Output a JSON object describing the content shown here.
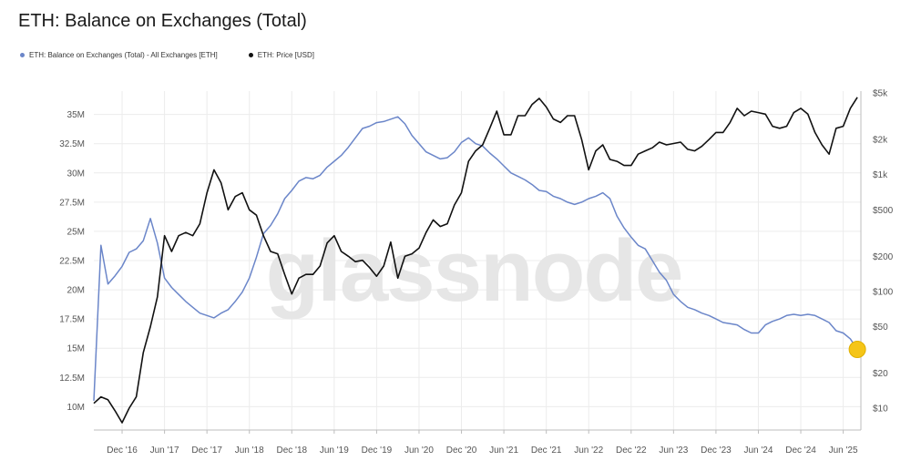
{
  "title": "ETH: Balance on Exchanges (Total)",
  "watermark": "glassnode",
  "legend": [
    {
      "label": "ETH: Balance on Exchanges (Total) - All Exchanges [ETH]",
      "color": "#6b86c9"
    },
    {
      "label": "ETH: Price [USD]",
      "color": "#111111"
    }
  ],
  "chart_data": {
    "type": "line",
    "grid": true,
    "legend_position": "top-left",
    "x_ticks": [
      "Dec '16",
      "Jun '17",
      "Dec '17",
      "Jun '18",
      "Dec '18",
      "Jun '19",
      "Dec '19",
      "Jun '20",
      "Dec '20",
      "Jun '21",
      "Dec '21",
      "Jun '22",
      "Dec '22",
      "Jun '23",
      "Dec '23",
      "Jun '24",
      "Dec '24",
      "Jun '25"
    ],
    "x_range": [
      "2016-08",
      "2025-08"
    ],
    "y_left": {
      "ticks": [
        "10M",
        "12.5M",
        "15M",
        "17.5M",
        "20M",
        "22.5M",
        "25M",
        "27.5M",
        "30M",
        "32.5M",
        "35M"
      ],
      "values": [
        10,
        12.5,
        15,
        17.5,
        20,
        22.5,
        25,
        27.5,
        30,
        32.5,
        35
      ],
      "range": [
        8,
        37
      ],
      "unit": "M ETH"
    },
    "y_right": {
      "scale": "log",
      "ticks": [
        "$10",
        "$20",
        "$50",
        "$100",
        "$200",
        "$500",
        "$1k",
        "$2k",
        "$5k"
      ],
      "values": [
        10,
        20,
        50,
        100,
        200,
        500,
        1000,
        2000,
        5000
      ],
      "range": [
        6.5,
        5200
      ]
    },
    "series": [
      {
        "name": "ETH: Balance on Exchanges (Total) - All Exchanges [ETH]",
        "axis": "left",
        "color": "#6b86c9",
        "x": [
          "2016-08",
          "2016-09",
          "2016-10",
          "2016-11",
          "2016-12",
          "2017-01",
          "2017-02",
          "2017-03",
          "2017-04",
          "2017-05",
          "2017-06",
          "2017-07",
          "2017-08",
          "2017-09",
          "2017-10",
          "2017-11",
          "2017-12",
          "2018-01",
          "2018-02",
          "2018-03",
          "2018-04",
          "2018-05",
          "2018-06",
          "2018-07",
          "2018-08",
          "2018-09",
          "2018-10",
          "2018-11",
          "2018-12",
          "2019-01",
          "2019-02",
          "2019-03",
          "2019-04",
          "2019-05",
          "2019-06",
          "2019-07",
          "2019-08",
          "2019-09",
          "2019-10",
          "2019-11",
          "2019-12",
          "2020-01",
          "2020-02",
          "2020-03",
          "2020-04",
          "2020-05",
          "2020-06",
          "2020-07",
          "2020-08",
          "2020-09",
          "2020-10",
          "2020-11",
          "2020-12",
          "2021-01",
          "2021-02",
          "2021-03",
          "2021-04",
          "2021-05",
          "2021-06",
          "2021-07",
          "2021-08",
          "2021-09",
          "2021-10",
          "2021-11",
          "2021-12",
          "2022-01",
          "2022-02",
          "2022-03",
          "2022-04",
          "2022-05",
          "2022-06",
          "2022-07",
          "2022-08",
          "2022-09",
          "2022-10",
          "2022-11",
          "2022-12",
          "2023-01",
          "2023-02",
          "2023-03",
          "2023-04",
          "2023-05",
          "2023-06",
          "2023-07",
          "2023-08",
          "2023-09",
          "2023-10",
          "2023-11",
          "2023-12",
          "2024-01",
          "2024-02",
          "2024-03",
          "2024-04",
          "2024-05",
          "2024-06",
          "2024-07",
          "2024-08",
          "2024-09",
          "2024-10",
          "2024-11",
          "2024-12",
          "2025-01",
          "2025-02",
          "2025-03",
          "2025-04",
          "2025-05",
          "2025-06",
          "2025-07",
          "2025-08"
        ],
        "values": [
          10.5,
          23.8,
          20.5,
          21.2,
          22,
          23.2,
          23.5,
          24.2,
          26.1,
          24,
          21,
          20.2,
          19.6,
          19,
          18.5,
          18,
          17.8,
          17.6,
          18,
          18.3,
          19,
          19.8,
          21,
          22.8,
          24.8,
          25.5,
          26.5,
          27.8,
          28.5,
          29.3,
          29.6,
          29.5,
          29.8,
          30.5,
          31,
          31.5,
          32.2,
          33,
          33.8,
          34,
          34.3,
          34.4,
          34.6,
          34.8,
          34.2,
          33.2,
          32.5,
          31.8,
          31.5,
          31.2,
          31.3,
          31.8,
          32.6,
          33,
          32.5,
          32.3,
          31.7,
          31.2,
          30.6,
          30,
          29.7,
          29.4,
          29,
          28.5,
          28.4,
          28,
          27.8,
          27.5,
          27.3,
          27.5,
          27.8,
          28,
          28.3,
          27.8,
          26.3,
          25.3,
          24.5,
          23.8,
          23.5,
          22.5,
          21.5,
          20.8,
          19.6,
          19,
          18.5,
          18.3,
          18,
          17.8,
          17.5,
          17.2,
          17.1,
          17,
          16.6,
          16.3,
          16.3,
          17,
          17.3,
          17.5,
          17.8,
          17.9,
          17.8,
          17.9,
          17.8,
          17.5,
          17.2,
          16.5,
          16.3,
          15.8,
          14.9
        ]
      },
      {
        "name": "ETH: Price [USD]",
        "axis": "right",
        "color": "#111111",
        "x": [
          "2016-08",
          "2016-09",
          "2016-10",
          "2016-11",
          "2016-12",
          "2017-01",
          "2017-02",
          "2017-03",
          "2017-04",
          "2017-05",
          "2017-06",
          "2017-07",
          "2017-08",
          "2017-09",
          "2017-10",
          "2017-11",
          "2017-12",
          "2018-01",
          "2018-02",
          "2018-03",
          "2018-04",
          "2018-05",
          "2018-06",
          "2018-07",
          "2018-08",
          "2018-09",
          "2018-10",
          "2018-11",
          "2018-12",
          "2019-01",
          "2019-02",
          "2019-03",
          "2019-04",
          "2019-05",
          "2019-06",
          "2019-07",
          "2019-08",
          "2019-09",
          "2019-10",
          "2019-11",
          "2019-12",
          "2020-01",
          "2020-02",
          "2020-03",
          "2020-04",
          "2020-05",
          "2020-06",
          "2020-07",
          "2020-08",
          "2020-09",
          "2020-10",
          "2020-11",
          "2020-12",
          "2021-01",
          "2021-02",
          "2021-03",
          "2021-04",
          "2021-05",
          "2021-06",
          "2021-07",
          "2021-08",
          "2021-09",
          "2021-10",
          "2021-11",
          "2021-12",
          "2022-01",
          "2022-02",
          "2022-03",
          "2022-04",
          "2022-05",
          "2022-06",
          "2022-07",
          "2022-08",
          "2022-09",
          "2022-10",
          "2022-11",
          "2022-12",
          "2023-01",
          "2023-02",
          "2023-03",
          "2023-04",
          "2023-05",
          "2023-06",
          "2023-07",
          "2023-08",
          "2023-09",
          "2023-10",
          "2023-11",
          "2023-12",
          "2024-01",
          "2024-02",
          "2024-03",
          "2024-04",
          "2024-05",
          "2024-06",
          "2024-07",
          "2024-08",
          "2024-09",
          "2024-10",
          "2024-11",
          "2024-12",
          "2025-01",
          "2025-02",
          "2025-03",
          "2025-04",
          "2025-05",
          "2025-06",
          "2025-07",
          "2025-08"
        ],
        "values": [
          11,
          12.5,
          11.8,
          9.5,
          7.5,
          10,
          12.5,
          30,
          50,
          90,
          300,
          220,
          300,
          320,
          300,
          380,
          700,
          1100,
          850,
          500,
          650,
          700,
          500,
          450,
          300,
          220,
          210,
          140,
          95,
          130,
          140,
          140,
          165,
          260,
          300,
          220,
          200,
          180,
          185,
          160,
          135,
          165,
          265,
          130,
          200,
          210,
          235,
          320,
          410,
          360,
          380,
          550,
          700,
          1300,
          1600,
          1800,
          2500,
          3500,
          2200,
          2200,
          3200,
          3200,
          4000,
          4500,
          3800,
          3000,
          2800,
          3200,
          3200,
          2000,
          1100,
          1600,
          1800,
          1350,
          1300,
          1200,
          1200,
          1500,
          1600,
          1700,
          1900,
          1800,
          1850,
          1900,
          1650,
          1600,
          1750,
          2000,
          2300,
          2300,
          2800,
          3700,
          3200,
          3500,
          3400,
          3300,
          2600,
          2500,
          2600,
          3400,
          3700,
          3300,
          2300,
          1800,
          1500,
          2500,
          2600,
          3700,
          4600
        ]
      }
    ]
  }
}
